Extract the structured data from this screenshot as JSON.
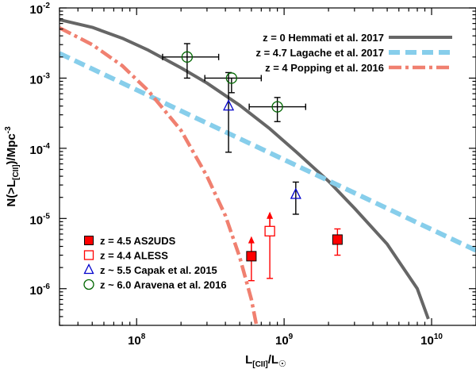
{
  "chart_data": {
    "type": "line",
    "xscale": "log",
    "yscale": "log",
    "xlim": [
      30000000,
      20000000000
    ],
    "ylim": [
      3e-07,
      0.01
    ],
    "xlabel": {
      "base": "L",
      "sub": "[CII]",
      "mid": "/L",
      "sub2": "☉"
    },
    "ylabel": {
      "base": "N(>L",
      "sub": "[CII]",
      "mid": ")/Mpc",
      "sup": "-3"
    },
    "x_ticks": [
      {
        "value": 100000000,
        "mant": "10",
        "exp": "8"
      },
      {
        "value": 1000000000,
        "mant": "10",
        "exp": "9"
      },
      {
        "value": 10000000000,
        "mant": "10",
        "exp": "10"
      }
    ],
    "y_ticks": [
      {
        "value": 0.01,
        "mant": "10",
        "exp": "-2"
      },
      {
        "value": 0.001,
        "mant": "10",
        "exp": "-3"
      },
      {
        "value": 0.0001,
        "mant": "10",
        "exp": "-4"
      },
      {
        "value": 1e-05,
        "mant": "10",
        "exp": "-5"
      },
      {
        "value": 1e-06,
        "mant": "10",
        "exp": "-6"
      }
    ],
    "model_curves": [
      {
        "name": "z = 0 Hemmati et al. 2017",
        "color": "#666666",
        "style": "solid",
        "x": [
          30000000,
          50000000,
          80000000,
          120000000,
          200000000,
          300000000,
          500000000,
          800000000,
          1200000000,
          2000000000,
          3000000000,
          5000000000,
          8000000000,
          9500000000
        ],
        "y": [
          0.0068,
          0.0053,
          0.0037,
          0.0025,
          0.0014,
          0.00085,
          0.00041,
          0.00019,
          9e-05,
          3.4e-05,
          1.4e-05,
          4.3e-06,
          1e-06,
          3.7e-07
        ]
      },
      {
        "name": "z = 4.7 Lagache et al. 2017",
        "color": "#87ceeb",
        "style": "dashed",
        "x": [
          30000000,
          20000000000
        ],
        "y": [
          0.00225,
          3.5e-06
        ]
      },
      {
        "name": "z = 4 Popping et al. 2016",
        "color": "#f08070",
        "style": "dashdot",
        "x": [
          30000000,
          50000000,
          80000000,
          120000000,
          200000000,
          300000000,
          400000000,
          500000000,
          600000000,
          650000000
        ],
        "y": [
          0.0052,
          0.003,
          0.0015,
          0.00066,
          0.00018,
          4e-05,
          1.1e-05,
          2.8e-06,
          7e-07,
          3e-07
        ]
      }
    ],
    "observations": [
      {
        "name": "z = 4.5 AS2UDS",
        "color": "#ff0000",
        "marker": "square-filled",
        "points": [
          {
            "x": 600000000,
            "y": 2.9e-06,
            "y_lo": 1.3e-06,
            "y_hi": null,
            "xerr": [
              null,
              null
            ],
            "arrow": 5.6e-06
          },
          {
            "x": 2300000000,
            "y": 5e-06,
            "y_lo": 3e-06,
            "y_hi": 7.1e-06,
            "xerr": [
              null,
              null
            ],
            "arrow": null
          }
        ]
      },
      {
        "name": "z = 4.4 ALESS",
        "color": "#ff0000",
        "marker": "square-open",
        "points": [
          {
            "x": 800000000,
            "y": 6.6e-06,
            "y_lo": 1.4e-06,
            "y_hi": null,
            "xerr": [
              null,
              null
            ],
            "arrow": 1.25e-05
          }
        ]
      },
      {
        "name": "z ~ 5.5 Capak et al. 2015",
        "color": "#0000cc",
        "marker": "triangle-open",
        "points": [
          {
            "x": 420000000,
            "y": 0.0004,
            "y_lo": 8.8e-05,
            "y_hi": 0.0012,
            "xerr": [
              null,
              null
            ],
            "arrow": null
          },
          {
            "x": 1200000000,
            "y": 2.2e-05,
            "y_lo": 1.15e-05,
            "y_hi": 3.3e-05,
            "xerr": [
              null,
              null
            ],
            "arrow": null
          }
        ]
      },
      {
        "name": "z ~ 6.0 Aravena et al. 2016",
        "color": "#006600",
        "marker": "circle-open",
        "points": [
          {
            "x": 220000000,
            "y": 0.002,
            "y_lo": 0.001,
            "y_hi": 0.0031,
            "xerr": [
              150000000,
              360000000
            ],
            "arrow": null
          },
          {
            "x": 440000000,
            "y": 0.001,
            "y_lo": 0.00062,
            "y_hi": null,
            "xerr": [
              290000000,
              700000000
            ],
            "arrow": null
          },
          {
            "x": 900000000,
            "y": 0.00039,
            "y_lo": 0.00024,
            "y_hi": 0.00053,
            "xerr": [
              580000000,
              1400000000
            ],
            "arrow": null
          }
        ]
      }
    ],
    "legend_models_position": "top-right",
    "legend_data_position": "bottom-left"
  }
}
